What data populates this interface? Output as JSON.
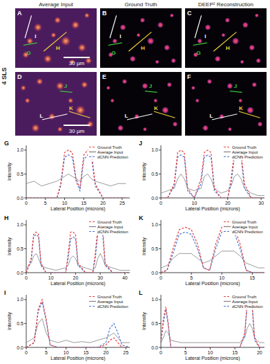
{
  "figure": {
    "row_label": "4 SLS",
    "columns": [
      "Average Input",
      "Ground Truth",
      "DEEP² Reconstruction"
    ],
    "panels": [
      {
        "letter": "A",
        "lines": [
          {
            "label": "I",
            "color": "#ffffff"
          },
          {
            "label": "H",
            "color": "#f2d23c"
          },
          {
            "label": "G",
            "color": "#3cc43c"
          }
        ],
        "scale_bar": "30 µm"
      },
      {
        "letter": "B",
        "lines": [
          {
            "label": "I",
            "color": "#ffffff"
          },
          {
            "label": "H",
            "color": "#f2d23c"
          },
          {
            "label": "G",
            "color": "#3cc43c"
          }
        ]
      },
      {
        "letter": "C",
        "lines": [
          {
            "label": "I",
            "color": "#ffffff"
          },
          {
            "label": "H",
            "color": "#f2d23c"
          },
          {
            "label": "G",
            "color": "#3cc43c"
          }
        ]
      },
      {
        "letter": "D",
        "lines": [
          {
            "label": "J",
            "color": "#3cc43c"
          },
          {
            "label": "K",
            "color": "#f2d23c"
          },
          {
            "label": "L",
            "color": "#ffffff"
          }
        ],
        "scale_bar": "30 µm"
      },
      {
        "letter": "E",
        "lines": [
          {
            "label": "J",
            "color": "#3cc43c"
          },
          {
            "label": "K",
            "color": "#f2d23c"
          },
          {
            "label": "L",
            "color": "#ffffff"
          }
        ]
      },
      {
        "letter": "F",
        "lines": [
          {
            "label": "J",
            "color": "#3cc43c"
          },
          {
            "label": "K",
            "color": "#f2d23c"
          },
          {
            "label": "L",
            "color": "#ffffff"
          }
        ]
      }
    ]
  },
  "chart_data": [
    {
      "type": "line",
      "title": "G",
      "xlabel": "Lateral Position (microns)",
      "ylabel": "Intensity",
      "legend": "upper right",
      "x": [
        0,
        2,
        4,
        6,
        8,
        9,
        10,
        11,
        12,
        13,
        14,
        15,
        16,
        17,
        18,
        20,
        22,
        24,
        26
      ],
      "xlim": [
        0,
        27
      ],
      "xticks": [
        0,
        5,
        10,
        15,
        20,
        25
      ],
      "ylim": [
        0,
        1.1
      ],
      "yticks": [
        {
          "value": 0,
          "label": "0.0"
        },
        {
          "value": 0.5,
          "label": "0.5"
        },
        {
          "value": 1,
          "label": "1.0"
        }
      ],
      "series": [
        {
          "name": "Ground Truth",
          "color": "#e8413c",
          "line_style": "dashed",
          "values": [
            0,
            0,
            0,
            0,
            0,
            0.3,
            0.95,
            1,
            0.95,
            0.4,
            0.2,
            0.9,
            1,
            0.95,
            0.3,
            0,
            0,
            0,
            0
          ]
        },
        {
          "name": "Average Input",
          "color": "#808080",
          "line_style": "solid",
          "values": [
            0.3,
            0.35,
            0.25,
            0.3,
            0.35,
            0.4,
            0.45,
            0.5,
            0.45,
            0.4,
            0.35,
            0.45,
            0.5,
            0.4,
            0.35,
            0.3,
            0.25,
            0.3,
            0.3
          ]
        },
        {
          "name": "dCNN Prediction",
          "color": "#4a78d8",
          "line_style": "dashed",
          "values": [
            0,
            0,
            0,
            0,
            0,
            0.25,
            0.85,
            0.9,
            0.85,
            0.35,
            0.15,
            0.8,
            0.9,
            0.85,
            0.25,
            0,
            0,
            0,
            0
          ]
        }
      ]
    },
    {
      "type": "line",
      "title": "H",
      "xlabel": "Lateral Position (microns)",
      "ylabel": "Intensity",
      "legend": "upper right",
      "x": [
        0,
        2,
        3,
        4,
        5,
        6,
        8,
        12,
        16,
        17,
        18,
        19,
        20,
        21,
        24,
        27,
        28,
        29,
        30,
        31,
        32,
        35,
        38,
        42
      ],
      "xlim": [
        0,
        42
      ],
      "xticks": [
        0,
        10,
        20,
        30,
        40
      ],
      "ylim": [
        0,
        1.1
      ],
      "yticks": [
        {
          "value": 0,
          "label": "0.0"
        },
        {
          "value": 0.5,
          "label": "0.5"
        },
        {
          "value": 1,
          "label": "1.0"
        }
      ],
      "series": [
        {
          "name": "Ground Truth",
          "color": "#e8413c",
          "line_style": "dashed",
          "values": [
            0,
            0.3,
            0.8,
            0.85,
            0.8,
            0.2,
            0,
            0,
            0,
            0.4,
            0.85,
            0.85,
            0.8,
            0.2,
            0,
            0,
            0.4,
            0.95,
            1,
            0.95,
            0.2,
            0,
            0,
            0
          ]
        },
        {
          "name": "Average Input",
          "color": "#808080",
          "line_style": "solid",
          "values": [
            0.1,
            0.2,
            0.35,
            0.4,
            0.3,
            0.15,
            0.1,
            0.05,
            0.1,
            0.15,
            0.3,
            0.35,
            0.3,
            0.15,
            0.1,
            0.05,
            0.1,
            0.3,
            0.4,
            0.3,
            0.15,
            0.1,
            0.05,
            0.05
          ]
        },
        {
          "name": "dCNN Prediction",
          "color": "#4a78d8",
          "line_style": "dashed",
          "values": [
            0,
            0.25,
            0.75,
            0.8,
            0.75,
            0.15,
            0,
            0,
            0,
            0.3,
            0.7,
            0.75,
            0.7,
            0.15,
            0,
            0,
            0.3,
            0.8,
            0.85,
            0.8,
            0.15,
            0,
            0,
            0
          ]
        }
      ]
    },
    {
      "type": "line",
      "title": "I",
      "xlabel": "Lateral Position (microns)",
      "ylabel": "Intensity",
      "legend": "upper right",
      "x": [
        0,
        2,
        3,
        4,
        5,
        6,
        8,
        10,
        12,
        14,
        16,
        18,
        20,
        21,
        22,
        23,
        24,
        26
      ],
      "xlim": [
        0,
        26
      ],
      "xticks": [
        0,
        5,
        10,
        15,
        20,
        25
      ],
      "ylim": [
        0,
        1.1
      ],
      "yticks": [
        {
          "value": 0,
          "label": "0.0"
        },
        {
          "value": 0.5,
          "label": "0.5"
        },
        {
          "value": 1,
          "label": "1.0"
        }
      ],
      "series": [
        {
          "name": "Ground Truth",
          "color": "#e8413c",
          "line_style": "dashed",
          "values": [
            0,
            0.1,
            0.8,
            1,
            0.6,
            0.05,
            0,
            0,
            0,
            0,
            0,
            0,
            0.05,
            0.15,
            0.2,
            0.1,
            0,
            0
          ]
        },
        {
          "name": "Average Input",
          "color": "#808080",
          "line_style": "solid",
          "values": [
            0.1,
            0.2,
            0.5,
            0.6,
            0.3,
            0.15,
            0.1,
            0.15,
            0.1,
            0.12,
            0.1,
            0.15,
            0.2,
            0.25,
            0.3,
            0.2,
            0.1,
            0.1
          ]
        },
        {
          "name": "dCNN Prediction",
          "color": "#4a78d8",
          "line_style": "dashed",
          "values": [
            0,
            0.1,
            0.75,
            0.95,
            0.55,
            0.05,
            0,
            0,
            0,
            0,
            0,
            0,
            0.1,
            0.4,
            0.5,
            0.3,
            0.05,
            0
          ]
        }
      ]
    },
    {
      "type": "line",
      "title": "J",
      "xlabel": "Lateral Position (microns)",
      "ylabel": "Intensity",
      "legend": "upper right",
      "x": [
        0,
        2,
        4,
        5,
        6,
        7,
        8,
        10,
        12,
        13,
        14,
        15,
        16,
        18,
        20,
        21,
        22,
        23,
        24,
        25,
        27,
        29,
        31
      ],
      "xlim": [
        0,
        31
      ],
      "xticks": [
        0,
        10,
        20,
        30
      ],
      "ylim": [
        0,
        1.1
      ],
      "yticks": [
        {
          "value": 0,
          "label": "0.0"
        },
        {
          "value": 0.5,
          "label": "0.5"
        },
        {
          "value": 1,
          "label": "1.0"
        }
      ],
      "series": [
        {
          "name": "Ground Truth",
          "color": "#e8413c",
          "line_style": "dashed",
          "values": [
            0,
            0,
            0.3,
            0.95,
            1,
            0.95,
            0.2,
            0,
            0.4,
            0.95,
            1,
            0.95,
            0.2,
            0,
            0,
            0.4,
            0.95,
            1,
            0.95,
            0.3,
            0,
            0,
            0
          ]
        },
        {
          "name": "Average Input",
          "color": "#808080",
          "line_style": "solid",
          "values": [
            0.1,
            0.15,
            0.2,
            0.4,
            0.5,
            0.4,
            0.2,
            0.15,
            0.2,
            0.45,
            0.5,
            0.4,
            0.2,
            0.1,
            0.15,
            0.25,
            0.45,
            0.5,
            0.4,
            0.2,
            0.1,
            0.05,
            0.05
          ]
        },
        {
          "name": "dCNN Prediction",
          "color": "#4a78d8",
          "line_style": "dashed",
          "values": [
            0,
            0,
            0.25,
            0.85,
            0.9,
            0.85,
            0.15,
            0,
            0.3,
            0.85,
            0.9,
            0.85,
            0.15,
            0,
            0,
            0.3,
            0.85,
            0.9,
            0.85,
            0.2,
            0,
            0,
            0
          ]
        }
      ]
    },
    {
      "type": "line",
      "title": "K",
      "xlabel": "Lateral Position (microns)",
      "ylabel": "Intensity",
      "legend": "upper right",
      "x": [
        0,
        1,
        2,
        3,
        4,
        5,
        6,
        7,
        8,
        9,
        10,
        11,
        12,
        13,
        14,
        15,
        16,
        17
      ],
      "xlim": [
        0,
        17
      ],
      "xticks": [
        0,
        5,
        10,
        15
      ],
      "ylim": [
        0,
        1.1
      ],
      "yticks": [
        {
          "value": 0,
          "label": "0.0"
        },
        {
          "value": 0.5,
          "label": "0.5"
        },
        {
          "value": 1,
          "label": "1.0"
        }
      ],
      "series": [
        {
          "name": "Ground Truth",
          "color": "#e8413c",
          "line_style": "dashed",
          "values": [
            0,
            0.05,
            0.5,
            0.9,
            0.95,
            0.9,
            0.6,
            0.1,
            0.05,
            0.6,
            0.95,
            1,
            0.95,
            0.6,
            0.05,
            0,
            0,
            0
          ]
        },
        {
          "name": "Average Input",
          "color": "#808080",
          "line_style": "solid",
          "values": [
            0.1,
            0.15,
            0.3,
            0.4,
            0.4,
            0.4,
            0.3,
            0.2,
            0.25,
            0.35,
            0.45,
            0.45,
            0.45,
            0.35,
            0.2,
            0.15,
            0.1,
            0.1
          ]
        },
        {
          "name": "dCNN Prediction",
          "color": "#4a78d8",
          "line_style": "dashed",
          "values": [
            0,
            0.05,
            0.4,
            0.8,
            0.85,
            0.8,
            0.5,
            0.1,
            0.05,
            0.5,
            0.85,
            0.9,
            0.85,
            0.5,
            0.05,
            0,
            0,
            0
          ]
        }
      ]
    },
    {
      "type": "line",
      "title": "L",
      "xlabel": "Lateral Position (microns)",
      "ylabel": "Intensity",
      "legend": "upper right",
      "x": [
        0,
        0.5,
        1,
        1.5,
        2,
        4,
        6,
        8,
        10,
        12,
        14,
        16,
        17,
        17.5,
        18,
        18.5,
        19,
        20,
        21
      ],
      "xlim": [
        0,
        21
      ],
      "xticks": [
        0,
        5,
        10,
        15,
        20
      ],
      "ylim": [
        0,
        1.1
      ],
      "yticks": [
        {
          "value": 0,
          "label": "0.0"
        },
        {
          "value": 0.5,
          "label": "0.5"
        },
        {
          "value": 1,
          "label": "1.0"
        }
      ],
      "series": [
        {
          "name": "Ground Truth",
          "color": "#e8413c",
          "line_style": "dashed",
          "values": [
            0.1,
            0.6,
            0.85,
            0.5,
            0,
            0,
            0,
            0,
            0,
            0,
            0,
            0,
            0.3,
            0.95,
            1,
            0.9,
            0.2,
            0,
            0
          ]
        },
        {
          "name": "Average Input",
          "color": "#808080",
          "line_style": "solid",
          "values": [
            0.1,
            0.2,
            0.35,
            0.3,
            0.15,
            0.1,
            0.1,
            0.1,
            0.1,
            0.1,
            0.1,
            0.1,
            0.2,
            0.4,
            0.5,
            0.4,
            0.2,
            0.1,
            0.1
          ]
        },
        {
          "name": "dCNN Prediction",
          "color": "#4a78d8",
          "line_style": "dashed",
          "values": [
            0.1,
            0.5,
            0.8,
            0.45,
            0,
            0,
            0,
            0,
            0,
            0,
            0,
            0,
            0.25,
            0.9,
            0.95,
            0.85,
            0.15,
            0,
            0
          ]
        }
      ]
    }
  ]
}
